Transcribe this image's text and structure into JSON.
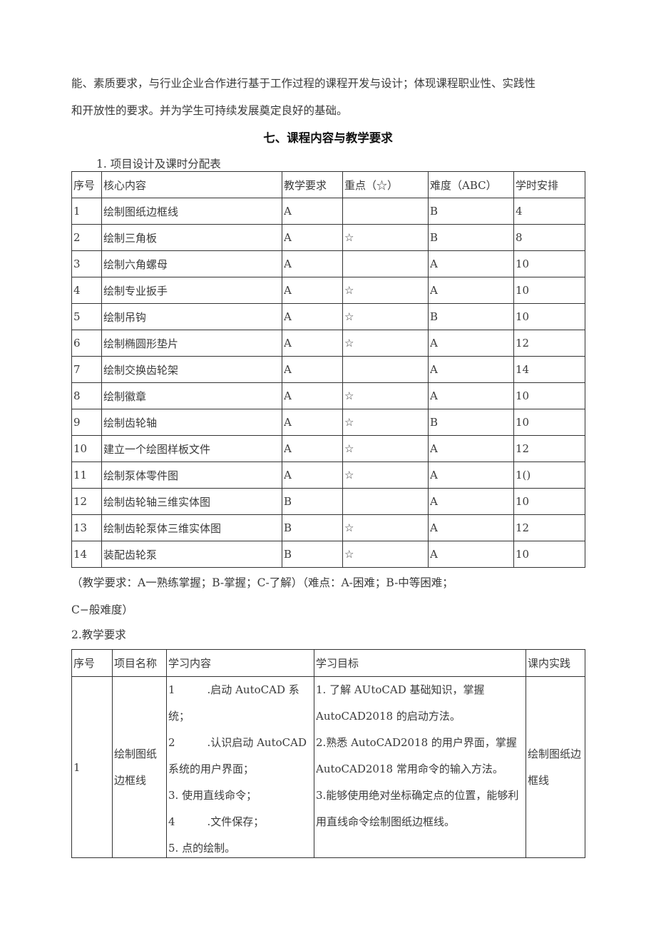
{
  "intro": [
    "能、素质要求，与行业企业合作进行基于工作过程的课程开发与设计；体现课程职业性、实践性",
    "和开放性的要求。并为学生可持续发展奠定良好的基础。"
  ],
  "section_title": "七、课程内容与教学要求",
  "table1": {
    "caption": "1. 项目设计及课时分配表",
    "headers": [
      "序号",
      "核心内容",
      "教学要求",
      "重点（☆）",
      "难度（ABC）",
      "学时安排"
    ],
    "rows": [
      [
        "1",
        "绘制图纸边框线",
        "A",
        "",
        "B",
        "4"
      ],
      [
        "2",
        "绘制三角板",
        "A",
        "☆",
        "B",
        "8"
      ],
      [
        "3",
        "绘制六角螺母",
        "A",
        "",
        "A",
        "10"
      ],
      [
        "4",
        "绘制专业扳手",
        "A",
        "☆",
        "A",
        "10"
      ],
      [
        "5",
        "绘制吊钩",
        "A",
        "☆",
        "B",
        "10"
      ],
      [
        "6",
        "绘制椭圆形垫片",
        "A",
        "☆",
        "A",
        "12"
      ],
      [
        "7",
        "绘制交换齿轮架",
        "A",
        "",
        "A",
        "14"
      ],
      [
        "8",
        "绘制徽章",
        "A",
        "☆",
        "A",
        "10"
      ],
      [
        "9",
        "绘制齿轮轴",
        "A",
        "☆",
        "B",
        "10"
      ],
      [
        "10",
        "建立一个绘图样板文件",
        "A",
        "☆",
        "A",
        "12"
      ],
      [
        "11",
        "绘制泵体零件图",
        "A",
        "☆",
        "A",
        "1()"
      ],
      [
        "12",
        "绘制齿轮轴三维实体图",
        "B",
        "",
        "A",
        "10"
      ],
      [
        "13",
        "绘制齿轮泵体三维实体图",
        "B",
        "☆",
        "A",
        "12"
      ],
      [
        "14",
        "装配齿轮泵",
        "B",
        "☆",
        "A",
        "10"
      ]
    ],
    "note": [
      "（教学要求：A一熟练掌握；B-掌握；C-了解）（难点：A-困难；B-中等困难；",
      "C−般难度）"
    ]
  },
  "table2": {
    "caption": "2.教学要求",
    "headers": [
      "序号",
      "项目名称",
      "学习内容",
      "学习目标",
      "课内实践"
    ],
    "row": {
      "no": "1",
      "name": "绘制图纸边框线",
      "content": [
        "1　　　.启动 AutoCAD 系统；",
        "2　　　.认识启动 AutoCAD 系统的用户界面；",
        "3. 使用直线命令；",
        "4　　　.文件保存；",
        "5. 点的绘制。"
      ],
      "goals": [
        "1. 了解 AUtoCAD 基础知识，掌握 AutoCAD2018 的启动方法。",
        "2.熟悉 AutoCAD2018 的用户界面，掌握 AutoCAD2018 常用命令的输入方法。",
        "3.能够使用绝对坐标确定点的位置，能够利用直线命令绘制图纸边框线。"
      ],
      "practice": "绘制图纸边框线"
    }
  }
}
